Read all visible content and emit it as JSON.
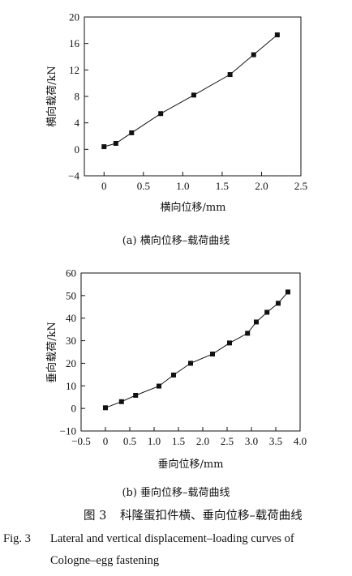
{
  "chart_data": [
    {
      "type": "line",
      "xlabel": "横向位移/mm",
      "ylabel": "横向载荷/kN",
      "xlim": [
        -0.25,
        2.5
      ],
      "ylim": [
        -4,
        20
      ],
      "xticks": [
        0,
        0.5,
        1.0,
        1.5,
        2.0,
        2.5
      ],
      "xtick_labels": [
        "0",
        "0.5",
        "1.0",
        "1.5",
        "2.0",
        "2.5"
      ],
      "yticks": [
        -4,
        0,
        4,
        8,
        12,
        16,
        20
      ],
      "ytick_labels": [
        "−4",
        "0",
        "4",
        "8",
        "12",
        "16",
        "20"
      ],
      "series": [
        {
          "x": [
            0,
            0.15,
            0.35,
            0.72,
            1.14,
            1.6,
            1.9,
            2.2
          ],
          "y": [
            0.4,
            0.9,
            2.5,
            5.4,
            8.2,
            11.3,
            14.3,
            17.3
          ]
        }
      ],
      "caption": "(a) 横向位移–载荷曲线"
    },
    {
      "type": "line",
      "xlabel": "垂向位移/mm",
      "ylabel": "垂向载荷/kN",
      "xlim": [
        -0.5,
        4.0
      ],
      "ylim": [
        -10,
        60
      ],
      "xticks": [
        -0.5,
        0,
        0.5,
        1.0,
        1.5,
        2.0,
        2.5,
        3.0,
        3.5,
        4.0
      ],
      "xtick_labels": [
        "−0.5",
        "0",
        "0.5",
        "1.0",
        "1.5",
        "2.0",
        "2.5",
        "3.0",
        "3.5",
        "4.0"
      ],
      "yticks": [
        -10,
        0,
        10,
        20,
        30,
        40,
        50,
        60
      ],
      "ytick_labels": [
        "−10",
        "0",
        "10",
        "20",
        "30",
        "40",
        "50",
        "60"
      ],
      "series": [
        {
          "x": [
            0,
            0.33,
            0.62,
            1.1,
            1.4,
            1.75,
            2.2,
            2.55,
            2.92,
            3.1,
            3.32,
            3.55,
            3.75
          ],
          "y": [
            0.3,
            3.0,
            5.8,
            9.9,
            14.8,
            20.0,
            24.1,
            29.0,
            33.3,
            38.3,
            42.6,
            46.6,
            51.6
          ]
        }
      ],
      "caption": "(b) 垂向位移–载荷曲线"
    }
  ],
  "figure": {
    "number": "图 3",
    "title_cn": "科隆蛋扣件横、垂向位移–载荷曲线",
    "label_en": "Fig. 3",
    "title_en_line1": "Lateral and vertical displacement–loading curves of",
    "title_en_line2": "Cologne–egg fastening"
  }
}
